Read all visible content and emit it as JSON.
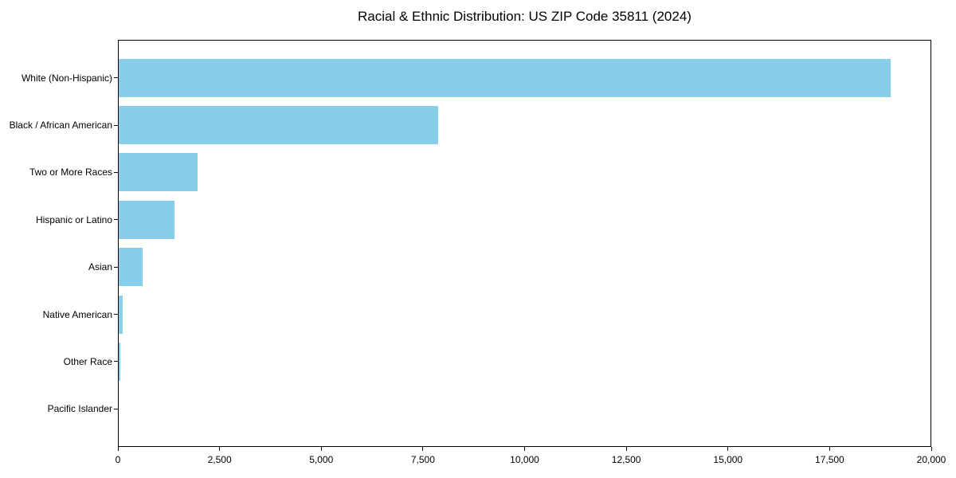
{
  "chart": {
    "title": "Racial & Ethnic Distribution: US ZIP Code 35811 (2024)"
  },
  "colors": {
    "bar": "#87CEEB",
    "axis": "#000000",
    "text": "#000000",
    "background": "#FFFFFF"
  },
  "chart_data": {
    "type": "bar",
    "orientation": "horizontal",
    "title": "Racial & Ethnic Distribution: US ZIP Code 35811 (2024)",
    "categories": [
      "White (Non-Hispanic)",
      "Black / African American",
      "Two or More Races",
      "Hispanic or Latino",
      "Asian",
      "Native American",
      "Other Race",
      "Pacific Islander"
    ],
    "values": [
      19000,
      7880,
      1950,
      1390,
      610,
      115,
      60,
      0
    ],
    "xlabel": "",
    "ylabel": "",
    "xlim": [
      0,
      20000
    ],
    "x_ticks": [
      0,
      2500,
      5000,
      7500,
      10000,
      12500,
      15000,
      17500,
      20000
    ],
    "x_tick_labels": [
      "0",
      "2,500",
      "5,000",
      "7,500",
      "10,000",
      "12,500",
      "15,000",
      "17,500",
      "20,000"
    ],
    "grid": false,
    "legend": null,
    "bar_color": "#87CEEB"
  }
}
